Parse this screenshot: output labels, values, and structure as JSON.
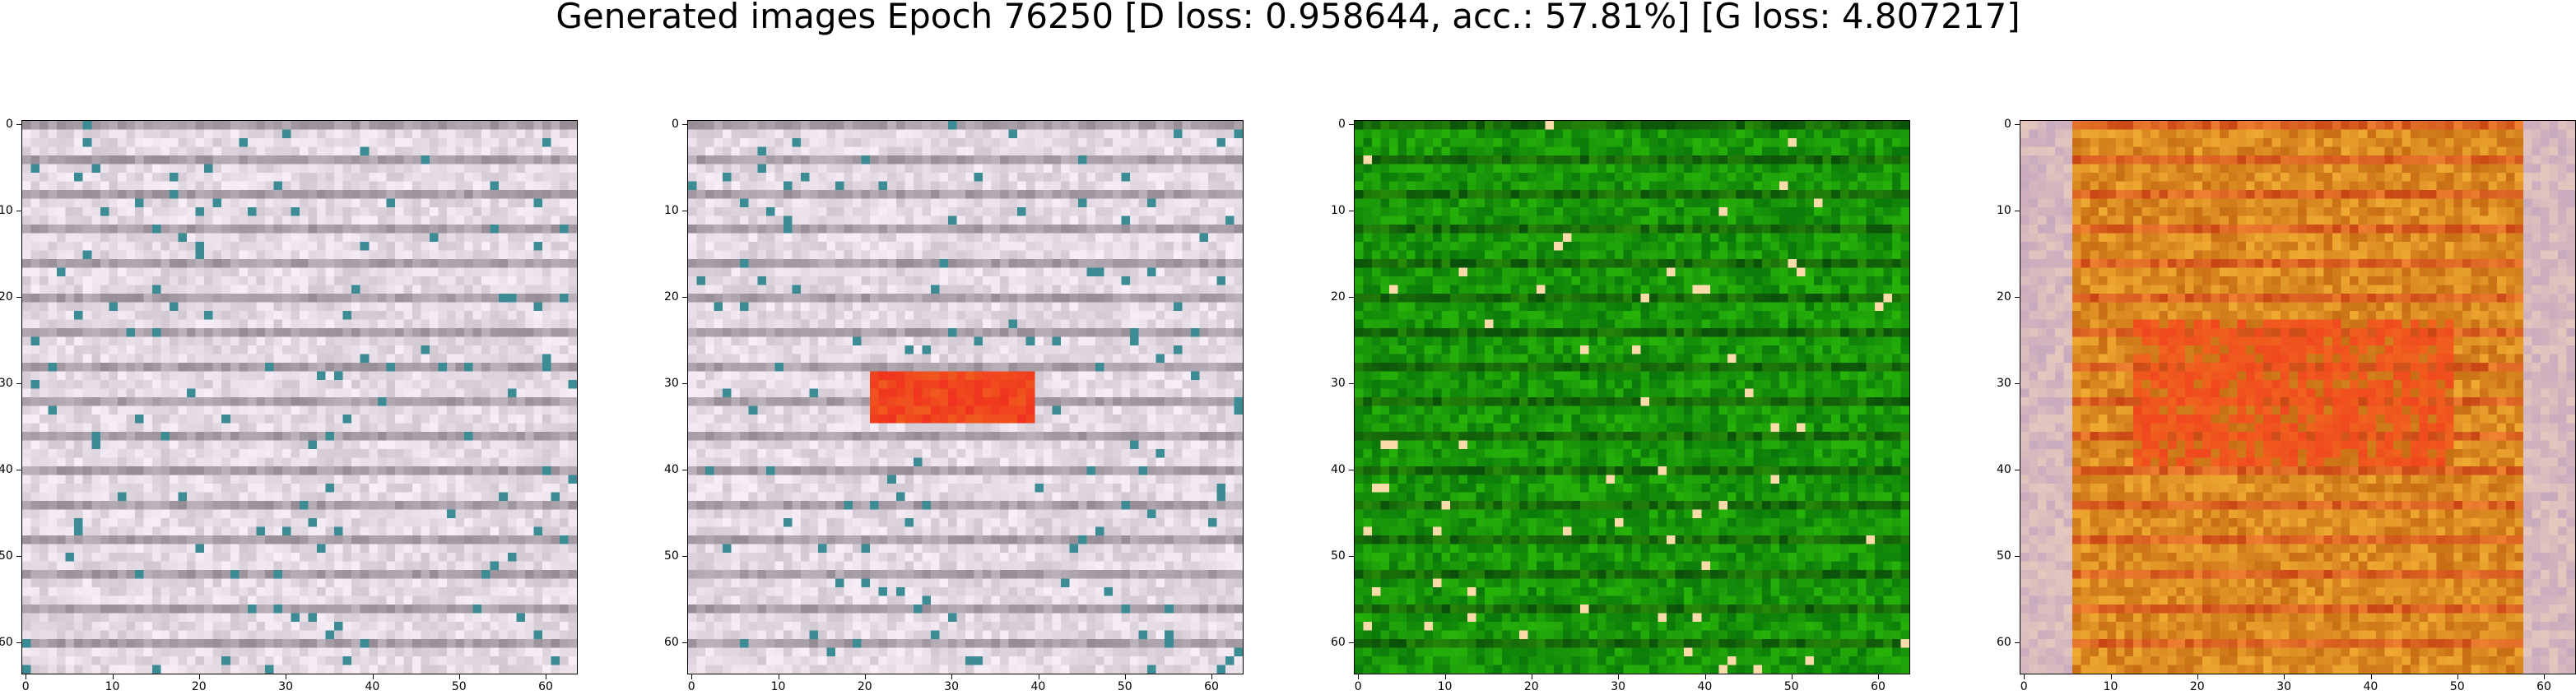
{
  "figure": {
    "title": "Generated images Epoch 76250 [D loss: 0.958644, acc.: 57.81%] [G loss: 4.807217]"
  },
  "panels": [
    {
      "palette": "gray-pink"
    },
    {
      "palette": "gray-pink-red"
    },
    {
      "palette": "green"
    },
    {
      "palette": "orange-red"
    }
  ],
  "axis": {
    "x_ticks": [
      "0",
      "10",
      "20",
      "30",
      "40",
      "50",
      "60"
    ],
    "y_ticks": [
      "0",
      "10",
      "20",
      "30",
      "40",
      "50",
      "60"
    ],
    "range": [
      0,
      63
    ]
  }
}
